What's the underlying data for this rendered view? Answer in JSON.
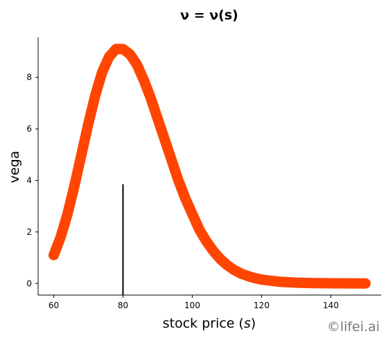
{
  "chart_data": {
    "type": "line",
    "title": "ν = ν(s)",
    "xlabel_text": "stock price (",
    "xlabel_var": "s",
    "xlabel_close": ")",
    "ylabel": "vega",
    "xlim": [
      55.5,
      154.5
    ],
    "ylim": [
      -0.45,
      9.55
    ],
    "xticks": [
      "60",
      "80",
      "100",
      "120",
      "140"
    ],
    "xtick_values": [
      60,
      80,
      100,
      120,
      140
    ],
    "yticks": [
      "0",
      "2",
      "4",
      "6",
      "8"
    ],
    "ytick_values": [
      0,
      2,
      4,
      6,
      8
    ],
    "grid": false,
    "series": [
      {
        "color": "#ff4500",
        "x": [
          60,
          62,
          64,
          66,
          68,
          70,
          72,
          74,
          76,
          78,
          80,
          82,
          84,
          86,
          88,
          90,
          92,
          94,
          96,
          98,
          100,
          102,
          104,
          106,
          108,
          110,
          112,
          114,
          116,
          118,
          120,
          125,
          130,
          135,
          140,
          145,
          150
        ],
        "y": [
          1.1,
          1.8,
          2.7,
          3.8,
          5.0,
          6.2,
          7.3,
          8.2,
          8.8,
          9.1,
          9.1,
          8.9,
          8.5,
          7.9,
          7.2,
          6.4,
          5.6,
          4.8,
          4.0,
          3.3,
          2.7,
          2.1,
          1.65,
          1.27,
          0.96,
          0.72,
          0.53,
          0.39,
          0.29,
          0.21,
          0.15,
          0.07,
          0.03,
          0.015,
          0.007,
          0.003,
          0.001
        ]
      }
    ],
    "vline": {
      "x": 80,
      "y_top": 3.85,
      "color": "#000000"
    }
  },
  "watermark": "©lifei.ai"
}
